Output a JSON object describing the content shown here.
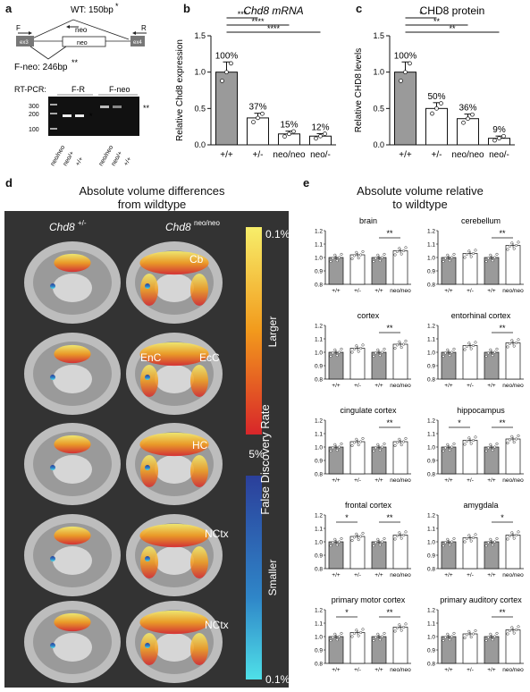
{
  "panels": {
    "a": {
      "label": "a",
      "wt": "WT: 150bp",
      "wt_star": "*",
      "fneo": "F-neo: 246bp",
      "fneo_star": "**",
      "primer_f": "F",
      "primer_r": "R",
      "neo": "neo",
      "exon_l": "ex3",
      "exon_r": "ex4",
      "rtpcr": "RT-PCR:",
      "fr": "F-R",
      "fneo_lane": "F-neo",
      "ladder": [
        "300",
        "200",
        "100"
      ],
      "lanes": [
        "neo/neo",
        "neo/+",
        "+/+",
        "neo/neo",
        "neo/+",
        "+/+"
      ],
      "star1": "*",
      "star2": "**"
    },
    "b": {
      "label": "b",
      "title": "Chd8 mRNA",
      "ylabel": "Relative Chd8 expression",
      "sig": [
        "***",
        "****",
        "****"
      ]
    },
    "c": {
      "label": "c",
      "title": "CHD8 protein",
      "ylabel": "Relative CHD8 levels",
      "sig": [
        "*",
        "**",
        "**"
      ]
    },
    "d": {
      "label": "d",
      "title1": "Absolute volume differences",
      "title2": "from wildtype",
      "col1_a": "Chd8",
      "col1_b": "+/-",
      "col2_a": "Chd8",
      "col2_b": "neo/neo",
      "regions": [
        "Cb",
        "EnC",
        "EcC",
        "HC",
        "NCtx",
        "NCtx"
      ],
      "scale_top": "0.1%",
      "scale_mid": "5%",
      "scale_bot": "0.1%",
      "larger": "Larger",
      "smaller": "Smaller",
      "fdr": "False Discovery Rate"
    },
    "e": {
      "label": "e",
      "title1": "Absolute volume relative",
      "title2": "to wildtype"
    }
  },
  "chart_data": [
    {
      "type": "bar",
      "title": "Chd8 mRNA",
      "ylabel": "Relative Chd8 expression",
      "categories": [
        "+/+",
        "+/-",
        "neo/neo",
        "neo/-"
      ],
      "values": [
        1.0,
        0.37,
        0.15,
        0.12
      ],
      "labels": [
        "100%",
        "37%",
        "15%",
        "12%"
      ],
      "ylim": [
        0,
        1.5
      ],
      "yticks": [
        "0.0",
        "0.5",
        "1.0",
        "1.5"
      ]
    },
    {
      "type": "bar",
      "title": "CHD8 protein",
      "ylabel": "Relative CHD8 levels",
      "categories": [
        "+/+",
        "+/-",
        "neo/neo",
        "neo/-"
      ],
      "values": [
        1.0,
        0.5,
        0.36,
        0.09
      ],
      "labels": [
        "100%",
        "50%",
        "36%",
        "9%"
      ],
      "ylim": [
        0,
        1.5
      ],
      "yticks": [
        "0.0",
        "0.5",
        "1.0",
        "1.5"
      ]
    },
    {
      "type": "bar",
      "title": "brain",
      "categories": [
        "+/+",
        "+/-",
        "+/+",
        "neo/neo"
      ],
      "values": [
        1.0,
        1.02,
        1.0,
        1.05
      ],
      "sig": "**"
    },
    {
      "type": "bar",
      "title": "cerebellum",
      "categories": [
        "+/+",
        "+/-",
        "+/+",
        "neo/neo"
      ],
      "values": [
        1.0,
        1.03,
        1.0,
        1.09
      ],
      "sig": "**"
    },
    {
      "type": "bar",
      "title": "cortex",
      "categories": [
        "+/+",
        "+/-",
        "+/+",
        "neo/neo"
      ],
      "values": [
        1.0,
        1.03,
        1.0,
        1.06
      ],
      "sig": "**"
    },
    {
      "type": "bar",
      "title": "entorhinal cortex",
      "categories": [
        "+/+",
        "+/-",
        "+/+",
        "neo/neo"
      ],
      "values": [
        1.0,
        1.05,
        1.0,
        1.07
      ],
      "sig": "**"
    },
    {
      "type": "bar",
      "title": "cingulate cortex",
      "categories": [
        "+/+",
        "+/-",
        "+/+",
        "neo/neo"
      ],
      "values": [
        1.0,
        1.04,
        1.0,
        1.04
      ],
      "sig": "**"
    },
    {
      "type": "bar",
      "title": "hippocampus",
      "categories": [
        "+/+",
        "+/-",
        "+/+",
        "neo/neo"
      ],
      "values": [
        1.0,
        1.05,
        1.0,
        1.06
      ],
      "sig": "**",
      "sig_het": "*"
    },
    {
      "type": "bar",
      "title": "frontal cortex",
      "categories": [
        "+/+",
        "+/-",
        "+/+",
        "neo/neo"
      ],
      "values": [
        1.0,
        1.04,
        1.0,
        1.05
      ],
      "sig": "**",
      "sig_het": "*"
    },
    {
      "type": "bar",
      "title": "amygdala",
      "categories": [
        "+/+",
        "+/-",
        "+/+",
        "neo/neo"
      ],
      "values": [
        1.0,
        1.03,
        1.0,
        1.05
      ],
      "sig": "*"
    },
    {
      "type": "bar",
      "title": "primary motor cortex",
      "categories": [
        "+/+",
        "+/-",
        "+/+",
        "neo/neo"
      ],
      "values": [
        1.0,
        1.03,
        1.0,
        1.07
      ],
      "sig": "**",
      "sig_het": "*"
    },
    {
      "type": "bar",
      "title": "primary auditory cortex",
      "categories": [
        "+/+",
        "+/-",
        "+/+",
        "neo/neo"
      ],
      "values": [
        1.0,
        1.02,
        1.0,
        1.05
      ],
      "sig": "**"
    }
  ],
  "small_yticks": [
    "0.8",
    "0.9",
    "1.0",
    "1.1",
    "1.2"
  ],
  "small_ylim": [
    0.8,
    1.2
  ],
  "colors": {
    "grey_bar": "#9a9a9a",
    "white_bar": "#ffffff",
    "hot": "#f4a21a",
    "cold": "#2f5fb0"
  }
}
